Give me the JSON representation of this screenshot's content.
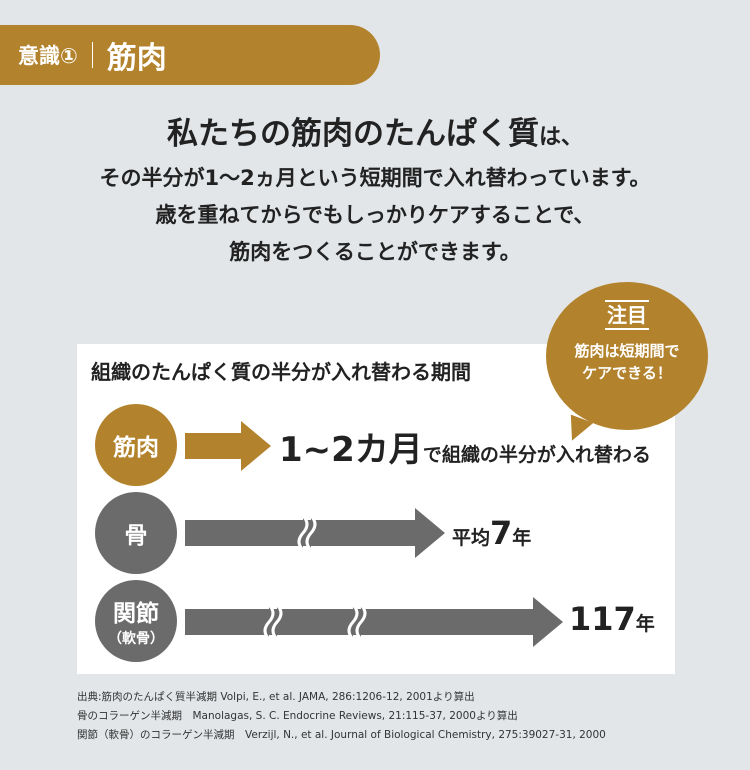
{
  "header": {
    "sub": "意識①",
    "main": "筋肉"
  },
  "lead": {
    "l1_main": "私たちの筋肉のたんぱく質",
    "l1_tail": "は、",
    "l2": "その半分が1〜2ヵ月という短期間で入れ替わっています。",
    "l3": "歳を重ねてからでもしっかりケアすることで、",
    "l4": "筋肉をつくることができます。"
  },
  "bubble": {
    "heading": "注目",
    "line1": "筋肉は短期間で",
    "line2": "ケアできる！"
  },
  "card": {
    "title": "組織のたんぱく質の半分が入れ替わる期間",
    "rows": [
      {
        "name": "筋肉",
        "value_big": "1~2カ月",
        "value_small": "で組織の半分が入れ替わる"
      },
      {
        "name": "骨",
        "value_small": "平均",
        "value_big": "7",
        "unit": "年"
      },
      {
        "name": "関節",
        "name_sub": "（軟骨）",
        "value_big": "117",
        "unit": "年"
      }
    ]
  },
  "colors": {
    "gold": "#b3822c",
    "gray": "#6b6b6b",
    "background": "#e2e6e9"
  },
  "notes": [
    "出典:筋肉のたんぱく質半減期 Volpi, E., et al. JAMA, 286:1206-12, 2001より算出",
    "骨のコラーゲン半減期　Manolagas, S. C. Endocrine Reviews, 21:115-37, 2000より算出",
    "関節（軟骨）のコラーゲン半減期　Verzijl, N., et al. Journal of Biological Chemistry, 275:39027-31, 2000"
  ]
}
